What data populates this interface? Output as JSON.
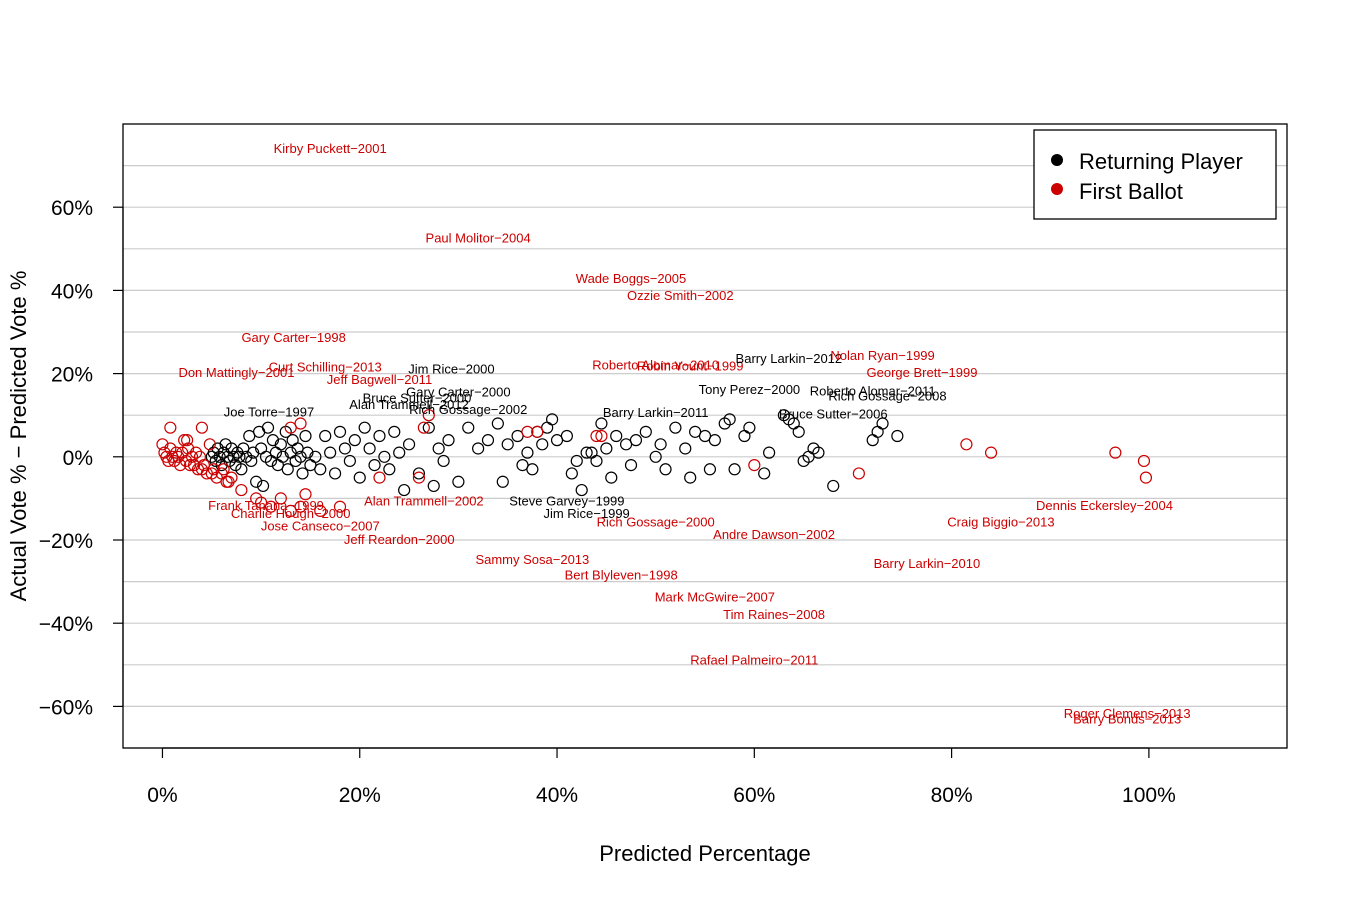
{
  "chart_data": {
    "type": "scatter",
    "title": "",
    "xlabel": "Predicted Percentage",
    "ylabel": "Actual Vote % − Predicted Vote %",
    "xlim": [
      -0.04,
      1.14
    ],
    "ylim": [
      -0.7,
      0.8
    ],
    "x_ticks": [
      0,
      0.2,
      0.4,
      0.6,
      0.8,
      1.0
    ],
    "x_tick_labels": [
      "0%",
      "20%",
      "40%",
      "60%",
      "80%",
      "100%"
    ],
    "y_ticks": [
      -0.6,
      -0.4,
      -0.2,
      0.0,
      0.2,
      0.4,
      0.6
    ],
    "y_tick_labels": [
      "−60%",
      "−40%",
      "−20%",
      "0%",
      "20%",
      "40%",
      "60%"
    ],
    "y_gridlines": [
      -0.7,
      -0.6,
      -0.5,
      -0.4,
      -0.3,
      -0.2,
      -0.1,
      0.0,
      0.1,
      0.2,
      0.3,
      0.4,
      0.5,
      0.6,
      0.7
    ],
    "grid": "horizontal",
    "legend_position": "top-right",
    "colors": {
      "Returning Player": "#000000",
      "First Ballot": "#cc0000",
      "grid": "#cccccc"
    },
    "series": [
      {
        "name": "Returning Player",
        "points": [
          [
            0.05,
            0.0
          ],
          [
            0.052,
            0.01
          ],
          [
            0.054,
            -0.01
          ],
          [
            0.056,
            0.02
          ],
          [
            0.058,
            0.0
          ],
          [
            0.06,
            -0.02
          ],
          [
            0.062,
            0.01
          ],
          [
            0.064,
            0.03
          ],
          [
            0.066,
            0.0
          ],
          [
            0.068,
            -0.01
          ],
          [
            0.07,
            0.02
          ],
          [
            0.072,
            0.0
          ],
          [
            0.074,
            -0.02
          ],
          [
            0.076,
            0.01
          ],
          [
            0.078,
            0.0
          ],
          [
            0.08,
            -0.03
          ],
          [
            0.082,
            0.02
          ],
          [
            0.085,
            0.0
          ],
          [
            0.088,
            0.05
          ],
          [
            0.09,
            -0.01
          ],
          [
            0.092,
            0.01
          ],
          [
            0.095,
            -0.06
          ],
          [
            0.098,
            0.06
          ],
          [
            0.1,
            0.02
          ],
          [
            0.102,
            -0.07
          ],
          [
            0.105,
            0.0
          ],
          [
            0.107,
            0.07
          ],
          [
            0.11,
            -0.01
          ],
          [
            0.112,
            0.04
          ],
          [
            0.115,
            0.01
          ],
          [
            0.117,
            -0.02
          ],
          [
            0.12,
            0.03
          ],
          [
            0.122,
            0.0
          ],
          [
            0.125,
            0.06
          ],
          [
            0.127,
            -0.03
          ],
          [
            0.13,
            0.01
          ],
          [
            0.132,
            0.04
          ],
          [
            0.135,
            -0.01
          ],
          [
            0.137,
            0.02
          ],
          [
            0.14,
            0.0
          ],
          [
            0.142,
            -0.04
          ],
          [
            0.145,
            0.05
          ],
          [
            0.147,
            0.01
          ],
          [
            0.15,
            -0.02
          ],
          [
            0.155,
            0.0
          ],
          [
            0.16,
            -0.03
          ],
          [
            0.165,
            0.05
          ],
          [
            0.17,
            0.01
          ],
          [
            0.175,
            -0.04
          ],
          [
            0.18,
            0.06
          ],
          [
            0.185,
            0.02
          ],
          [
            0.19,
            -0.01
          ],
          [
            0.195,
            0.04
          ],
          [
            0.2,
            -0.05
          ],
          [
            0.205,
            0.07
          ],
          [
            0.21,
            0.02
          ],
          [
            0.215,
            -0.02
          ],
          [
            0.22,
            0.05
          ],
          [
            0.225,
            0.0
          ],
          [
            0.23,
            -0.03
          ],
          [
            0.235,
            0.06
          ],
          [
            0.24,
            0.01
          ],
          [
            0.245,
            -0.08
          ],
          [
            0.25,
            0.03
          ],
          [
            0.26,
            -0.04
          ],
          [
            0.27,
            0.07
          ],
          [
            0.275,
            -0.07
          ],
          [
            0.28,
            0.02
          ],
          [
            0.285,
            -0.01
          ],
          [
            0.29,
            0.04
          ],
          [
            0.3,
            -0.06
          ],
          [
            0.31,
            0.07
          ],
          [
            0.32,
            0.02
          ],
          [
            0.33,
            0.04
          ],
          [
            0.34,
            0.08
          ],
          [
            0.345,
            -0.06
          ],
          [
            0.35,
            0.03
          ],
          [
            0.36,
            0.05
          ],
          [
            0.365,
            -0.02
          ],
          [
            0.37,
            0.01
          ],
          [
            0.375,
            -0.03
          ],
          [
            0.38,
            0.06
          ],
          [
            0.385,
            0.03
          ],
          [
            0.39,
            0.07
          ],
          [
            0.395,
            0.09
          ],
          [
            0.4,
            0.04
          ],
          [
            0.41,
            0.05
          ],
          [
            0.415,
            -0.04
          ],
          [
            0.42,
            -0.01
          ],
          [
            0.425,
            -0.08
          ],
          [
            0.43,
            0.01
          ],
          [
            0.435,
            0.01
          ],
          [
            0.44,
            -0.01
          ],
          [
            0.445,
            0.08
          ],
          [
            0.45,
            0.02
          ],
          [
            0.455,
            -0.05
          ],
          [
            0.46,
            0.05
          ],
          [
            0.47,
            0.03
          ],
          [
            0.475,
            -0.02
          ],
          [
            0.48,
            0.04
          ],
          [
            0.49,
            0.06
          ],
          [
            0.5,
            0.0
          ],
          [
            0.505,
            0.03
          ],
          [
            0.51,
            -0.03
          ],
          [
            0.52,
            0.07
          ],
          [
            0.53,
            0.02
          ],
          [
            0.535,
            -0.05
          ],
          [
            0.54,
            0.06
          ],
          [
            0.55,
            0.05
          ],
          [
            0.555,
            -0.03
          ],
          [
            0.56,
            0.04
          ],
          [
            0.57,
            0.08
          ],
          [
            0.575,
            0.09
          ],
          [
            0.58,
            -0.03
          ],
          [
            0.59,
            0.05
          ],
          [
            0.595,
            0.07
          ],
          [
            0.61,
            -0.04
          ],
          [
            0.615,
            0.01
          ],
          [
            0.63,
            0.1
          ],
          [
            0.635,
            0.09
          ],
          [
            0.64,
            0.08
          ],
          [
            0.645,
            0.06
          ],
          [
            0.65,
            -0.01
          ],
          [
            0.655,
            0.0
          ],
          [
            0.66,
            0.02
          ],
          [
            0.665,
            0.01
          ],
          [
            0.68,
            -0.07
          ],
          [
            0.72,
            0.04
          ],
          [
            0.725,
            0.06
          ],
          [
            0.73,
            0.08
          ],
          [
            0.745,
            0.05
          ]
        ]
      },
      {
        "name": "First Ballot",
        "points": [
          [
            0.0,
            0.03
          ],
          [
            0.002,
            0.01
          ],
          [
            0.004,
            0.0
          ],
          [
            0.006,
            -0.01
          ],
          [
            0.008,
            0.02
          ],
          [
            0.01,
            0.0
          ],
          [
            0.012,
            -0.01
          ],
          [
            0.014,
            0.01
          ],
          [
            0.016,
            0.0
          ],
          [
            0.018,
            -0.02
          ],
          [
            0.02,
            0.01
          ],
          [
            0.022,
            0.04
          ],
          [
            0.024,
            -0.01
          ],
          [
            0.026,
            0.02
          ],
          [
            0.028,
            -0.02
          ],
          [
            0.03,
            0.0
          ],
          [
            0.032,
            -0.02
          ],
          [
            0.034,
            0.01
          ],
          [
            0.036,
            -0.03
          ],
          [
            0.038,
            0.0
          ],
          [
            0.04,
            -0.03
          ],
          [
            0.042,
            -0.02
          ],
          [
            0.045,
            -0.04
          ],
          [
            0.048,
            0.03
          ],
          [
            0.05,
            -0.04
          ],
          [
            0.052,
            -0.03
          ],
          [
            0.055,
            -0.05
          ],
          [
            0.06,
            -0.04
          ],
          [
            0.065,
            -0.06
          ],
          [
            0.07,
            -0.05
          ],
          [
            0.08,
            -0.08
          ],
          [
            0.008,
            0.07
          ],
          [
            0.025,
            0.04
          ],
          [
            0.04,
            0.07
          ],
          [
            0.062,
            -0.03
          ],
          [
            0.067,
            -0.06
          ],
          [
            0.095,
            -0.1
          ],
          [
            0.1,
            -0.11
          ],
          [
            0.11,
            -0.12
          ],
          [
            0.12,
            -0.1
          ],
          [
            0.13,
            -0.13
          ],
          [
            0.14,
            -0.12
          ],
          [
            0.145,
            -0.09
          ],
          [
            0.13,
            0.07
          ],
          [
            0.14,
            0.08
          ],
          [
            0.16,
            -0.13
          ],
          [
            0.18,
            -0.12
          ],
          [
            0.22,
            -0.05
          ],
          [
            0.26,
            -0.05
          ],
          [
            0.265,
            0.07
          ],
          [
            0.27,
            0.1
          ],
          [
            0.37,
            0.06
          ],
          [
            0.38,
            0.06
          ],
          [
            0.44,
            0.05
          ],
          [
            0.445,
            0.05
          ],
          [
            0.6,
            -0.02
          ],
          [
            0.706,
            -0.04
          ],
          [
            0.815,
            0.03
          ],
          [
            0.84,
            0.01
          ],
          [
            0.966,
            0.01
          ],
          [
            0.995,
            -0.01
          ],
          [
            0.997,
            -0.05
          ]
        ]
      }
    ],
    "annotations": [
      {
        "text": "Kirby Puckett−2001",
        "x": 0.17,
        "y": 0.74,
        "series": "First Ballot"
      },
      {
        "text": "Paul Molitor−2004",
        "x": 0.32,
        "y": 0.525,
        "series": "First Ballot"
      },
      {
        "text": "Wade Boggs−2005",
        "x": 0.475,
        "y": 0.427,
        "series": "First Ballot"
      },
      {
        "text": "Ozzie Smith−2002",
        "x": 0.525,
        "y": 0.387,
        "series": "First Ballot"
      },
      {
        "text": "Gary Carter−1998",
        "x": 0.133,
        "y": 0.285,
        "series": "First Ballot"
      },
      {
        "text": "Curt Schilling−2013",
        "x": 0.165,
        "y": 0.215,
        "series": "First Ballot"
      },
      {
        "text": "Don Mattingly−2001",
        "x": 0.075,
        "y": 0.202,
        "series": "First Ballot"
      },
      {
        "text": "Jeff Bagwell−2011",
        "x": 0.22,
        "y": 0.185,
        "series": "First Ballot"
      },
      {
        "text": "Jim Rice−2000",
        "x": 0.293,
        "y": 0.21,
        "series": "Returning Player"
      },
      {
        "text": "Roberto Alomar−2010",
        "x": 0.5,
        "y": 0.22,
        "series": "First Ballot"
      },
      {
        "text": "Robin Yount−1999",
        "x": 0.535,
        "y": 0.217,
        "series": "First Ballot"
      },
      {
        "text": "Barry Larkin−2012",
        "x": 0.635,
        "y": 0.235,
        "series": "Returning Player"
      },
      {
        "text": "Nolan Ryan−1999",
        "x": 0.73,
        "y": 0.242,
        "series": "First Ballot"
      },
      {
        "text": "George Brett−1999",
        "x": 0.77,
        "y": 0.202,
        "series": "First Ballot"
      },
      {
        "text": "Gary Carter−2000",
        "x": 0.3,
        "y": 0.155,
        "series": "Returning Player"
      },
      {
        "text": "Bruce Sutter−2000",
        "x": 0.258,
        "y": 0.14,
        "series": "Returning Player"
      },
      {
        "text": "Alan Trammell−2012",
        "x": 0.25,
        "y": 0.125,
        "series": "Returning Player"
      },
      {
        "text": "Rich Gossage−2002",
        "x": 0.31,
        "y": 0.113,
        "series": "Returning Player"
      },
      {
        "text": "Tony Perez−2000",
        "x": 0.595,
        "y": 0.16,
        "series": "Returning Player"
      },
      {
        "text": "Roberto Alomar−2011",
        "x": 0.72,
        "y": 0.157,
        "series": "Returning Player"
      },
      {
        "text": "Rich Gossage−2008",
        "x": 0.735,
        "y": 0.145,
        "series": "Returning Player"
      },
      {
        "text": "Barry Larkin−2011",
        "x": 0.5,
        "y": 0.105,
        "series": "Returning Player"
      },
      {
        "text": "Bruce Sutter−2006",
        "x": 0.68,
        "y": 0.102,
        "series": "Returning Player"
      },
      {
        "text": "Joe Torre−1997",
        "x": 0.108,
        "y": 0.107,
        "series": "Returning Player"
      },
      {
        "text": "Steve Garvey−1999",
        "x": 0.41,
        "y": -0.108,
        "series": "Returning Player"
      },
      {
        "text": "Jim Rice−1999",
        "x": 0.43,
        "y": -0.138,
        "series": "Returning Player"
      },
      {
        "text": "Rich Gossage−2000",
        "x": 0.5,
        "y": -0.158,
        "series": "First Ballot"
      },
      {
        "text": "Alan Trammell−2002",
        "x": 0.265,
        "y": -0.108,
        "series": "First Ballot"
      },
      {
        "text": "Frank Tanana−1999",
        "x": 0.105,
        "y": -0.118,
        "series": "First Ballot"
      },
      {
        "text": "Charlie Hough−2000",
        "x": 0.13,
        "y": -0.138,
        "series": "First Ballot"
      },
      {
        "text": "Jose Canseco−2007",
        "x": 0.16,
        "y": -0.168,
        "series": "First Ballot"
      },
      {
        "text": "Jeff Reardon−2000",
        "x": 0.24,
        "y": -0.2,
        "series": "First Ballot"
      },
      {
        "text": "Andre Dawson−2002",
        "x": 0.62,
        "y": -0.188,
        "series": "First Ballot"
      },
      {
        "text": "Dennis Eckersley−2004",
        "x": 0.955,
        "y": -0.118,
        "series": "First Ballot"
      },
      {
        "text": "Craig Biggio−2013",
        "x": 0.85,
        "y": -0.158,
        "series": "First Ballot"
      },
      {
        "text": "Sammy Sosa−2013",
        "x": 0.375,
        "y": -0.248,
        "series": "First Ballot"
      },
      {
        "text": "Bert Blyleven−1998",
        "x": 0.465,
        "y": -0.285,
        "series": "First Ballot"
      },
      {
        "text": "Barry Larkin−2010",
        "x": 0.775,
        "y": -0.258,
        "series": "First Ballot"
      },
      {
        "text": "Mark McGwire−2007",
        "x": 0.56,
        "y": -0.338,
        "series": "First Ballot"
      },
      {
        "text": "Tim Raines−2008",
        "x": 0.62,
        "y": -0.38,
        "series": "First Ballot"
      },
      {
        "text": "Rafael Palmeiro−2011",
        "x": 0.6,
        "y": -0.49,
        "series": "First Ballot"
      },
      {
        "text": "Roger Clemens−2013",
        "x": 0.978,
        "y": -0.618,
        "series": "First Ballot"
      },
      {
        "text": "Barry Bonds−2013",
        "x": 0.978,
        "y": -0.632,
        "series": "First Ballot"
      }
    ]
  }
}
